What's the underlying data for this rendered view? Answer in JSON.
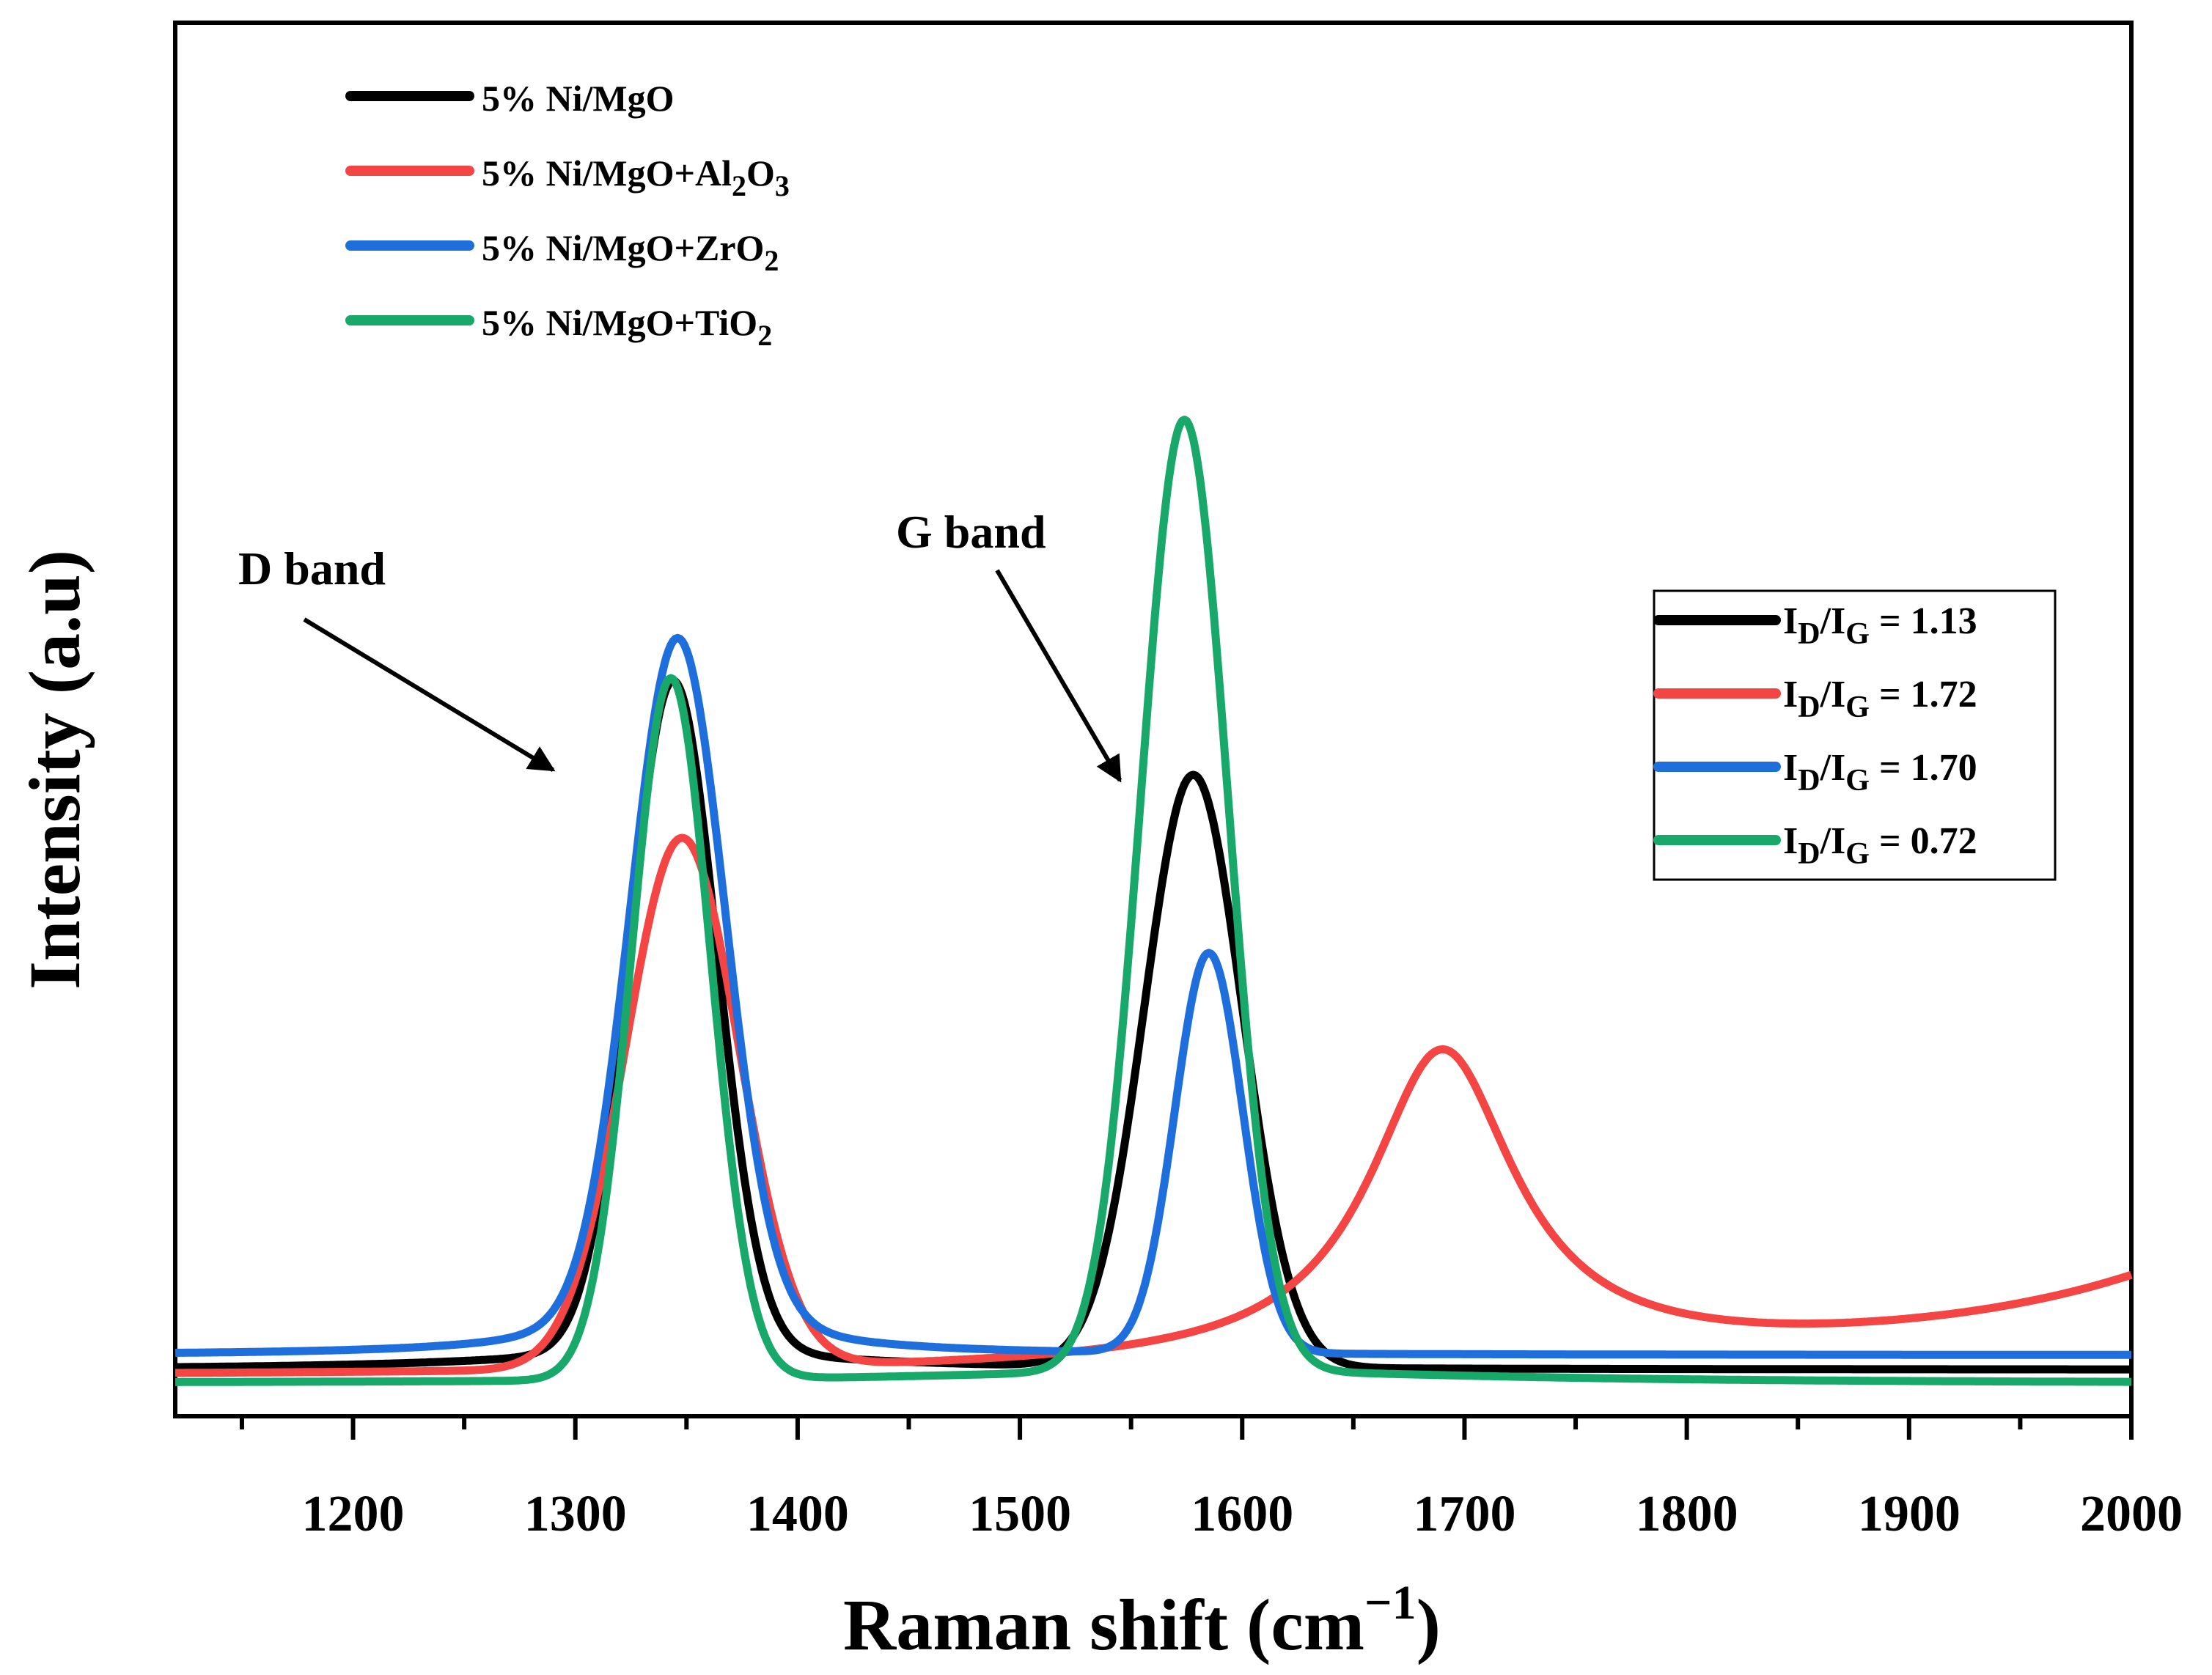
{
  "chart_data": {
    "type": "line",
    "title": "",
    "xlabel": "Raman shift (cm",
    "xlabel_sup": "−1",
    "xlabel_close": ")",
    "ylabel": "Intensity (a.u)",
    "xlim": [
      1120,
      2000
    ],
    "ylim": [
      0,
      1.12
    ],
    "x_ticks": [
      1200,
      1300,
      1400,
      1500,
      1600,
      1700,
      1800,
      1900,
      2000
    ],
    "x_tick_labels": [
      "1200",
      "1300",
      "1400",
      "1500",
      "1600",
      "1700",
      "1800",
      "1900",
      "2000"
    ],
    "x_minor_ticks": [
      1150,
      1250,
      1350,
      1450,
      1550,
      1650,
      1750,
      1850,
      1950
    ],
    "y_ticks_shown": false,
    "grid": false,
    "series": [
      {
        "name": "5% Ni/MgO",
        "color": "#000000",
        "baseline": 0.013,
        "peaks": [
          {
            "center": 1344,
            "height": 0.645,
            "fwhm": 46,
            "shape": "gaussian"
          },
          {
            "center": 1578,
            "height": 0.57,
            "fwhm": 52,
            "shape": "gaussian"
          }
        ],
        "tail": [
          {
            "center": 1345,
            "height": 0.018,
            "fwhm": 180,
            "shape": "lorentzian"
          }
        ]
      },
      {
        "name": "5% Ni/MgO+Al2O3",
        "color": "#f44545",
        "baseline": 0.005,
        "peaks": [
          {
            "center": 1348,
            "height": 0.51,
            "fwhm": 60,
            "shape": "gaussian"
          },
          {
            "center": 1690,
            "height": 0.3,
            "fwhm": 80,
            "shape": "lorentzian"
          }
        ],
        "tail": [
          {
            "center": 2150,
            "height": 0.22,
            "fwhm": 260,
            "shape": "lorentzian"
          }
        ]
      },
      {
        "name": "5% Ni/MgO+ZrO2",
        "color": "#1e6fdc",
        "baseline": 0.027,
        "peaks": [
          {
            "center": 1346,
            "height": 0.63,
            "fwhm": 50,
            "shape": "gaussian"
          },
          {
            "center": 1585,
            "height": 0.385,
            "fwhm": 36,
            "shape": "gaussian"
          }
        ],
        "tail": [
          {
            "center": 1346,
            "height": 0.06,
            "fwhm": 90,
            "shape": "lorentzian"
          }
        ]
      },
      {
        "name": "5% Ni/MgO+TiO2",
        "color": "#18a869",
        "baseline": 0.0,
        "peaks": [
          {
            "center": 1343,
            "height": 0.675,
            "fwhm": 42,
            "shape": "gaussian"
          },
          {
            "center": 1574,
            "height": 0.915,
            "fwhm": 46,
            "shape": "gaussian"
          }
        ],
        "tail": [
          {
            "center": 1580,
            "height": 0.012,
            "fwhm": 300,
            "shape": "lorentzian"
          }
        ]
      }
    ],
    "legend_series": [
      {
        "label": "5% Ni/MgO",
        "label_sub": "",
        "label_rest": "",
        "label_sub2": "",
        "color": "#000000"
      },
      {
        "label": "5% Ni/MgO+Al",
        "label_sub": "2",
        "label_rest": "O",
        "label_sub2": "3",
        "color": "#f44545"
      },
      {
        "label": "5% Ni/MgO+ZrO",
        "label_sub": "2",
        "label_rest": "",
        "label_sub2": "",
        "color": "#1e6fdc"
      },
      {
        "label": "5% Ni/MgO+TiO",
        "label_sub": "2",
        "label_rest": "",
        "label_sub2": "",
        "color": "#18a869"
      }
    ],
    "legend_position": "top-left",
    "ratio_legend": {
      "position": "right",
      "entries": [
        {
          "value": "1.13",
          "color": "#000000"
        },
        {
          "value": "1.72",
          "color": "#f44545"
        },
        {
          "value": "1.70",
          "color": "#1e6fdc"
        },
        {
          "value": "0.72",
          "color": "#18a869"
        }
      ],
      "prefix_i": "I",
      "sub_d": "D",
      "slash": "/I",
      "sub_g": "G",
      "equals": " = "
    },
    "annotations": [
      {
        "text": "D band",
        "arrow_to_x": 1290,
        "arrow_to_y": 0.59
      },
      {
        "text": "G band",
        "arrow_to_x": 1545,
        "arrow_to_y": 0.58
      }
    ]
  }
}
